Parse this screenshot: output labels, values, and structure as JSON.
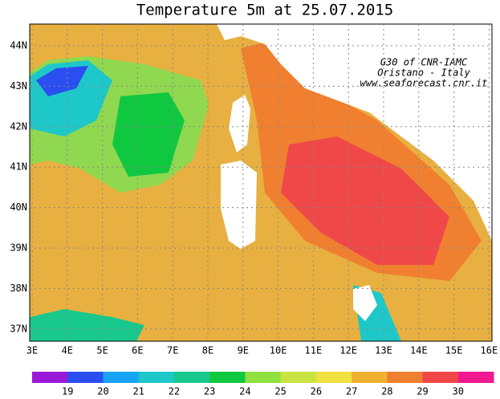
{
  "title": "Temperature 5m at 25.07.2015",
  "credits": [
    "G30 of CNR-IAMC",
    "Oristano - Italy",
    "www.seaforecast.cnr.it"
  ],
  "lat_ticks": [
    "44N",
    "43N",
    "42N",
    "41N",
    "40N",
    "39N",
    "38N",
    "37N"
  ],
  "lon_ticks": [
    "3E",
    "4E",
    "5E",
    "6E",
    "7E",
    "8E",
    "9E",
    "10E",
    "11E",
    "12E",
    "13E",
    "14E",
    "15E",
    "16E"
  ],
  "colorbar": {
    "colors": [
      "#9a19d6",
      "#2a4ef0",
      "#18a4f4",
      "#1ec8c8",
      "#18c88c",
      "#10c840",
      "#90e040",
      "#c8e440",
      "#f0e040",
      "#f0b030",
      "#f08030",
      "#f04848",
      "#f01890"
    ],
    "labels": [
      "19",
      "20",
      "21",
      "22",
      "23",
      "24",
      "25",
      "26",
      "27",
      "28",
      "29",
      "30"
    ]
  }
}
